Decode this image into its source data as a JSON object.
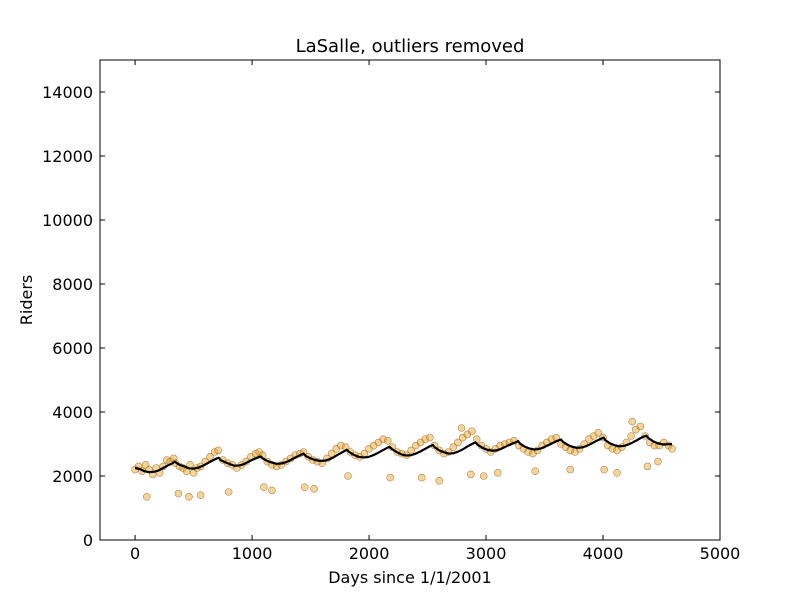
{
  "chart_data": {
    "type": "scatter",
    "title": "LaSalle, outliers removed",
    "xlabel": "Days since 1/1/2001",
    "ylabel": "Riders",
    "xlim": [
      -300,
      5000
    ],
    "ylim": [
      0,
      15000
    ],
    "xticks": [
      0,
      1000,
      2000,
      3000,
      4000,
      5000
    ],
    "yticks": [
      0,
      2000,
      4000,
      6000,
      8000,
      10000,
      12000,
      14000
    ],
    "grid": false,
    "legend": "none",
    "colors": {
      "points_fill": "#e8a020",
      "points_edge": "#7a4a00",
      "trend_line": "#000000",
      "axes": "#000000"
    },
    "series": [
      {
        "kind": "scatter",
        "values": [
          [
            0,
            2200
          ],
          [
            30,
            2300
          ],
          [
            60,
            2150
          ],
          [
            90,
            2350
          ],
          [
            120,
            2200
          ],
          [
            150,
            2050
          ],
          [
            180,
            2250
          ],
          [
            210,
            2100
          ],
          [
            240,
            2300
          ],
          [
            270,
            2500
          ],
          [
            300,
            2450
          ],
          [
            330,
            2550
          ],
          [
            345,
            2400
          ],
          [
            380,
            2300
          ],
          [
            410,
            2250
          ],
          [
            440,
            2150
          ],
          [
            470,
            2350
          ],
          [
            500,
            2100
          ],
          [
            530,
            2250
          ],
          [
            560,
            2300
          ],
          [
            600,
            2450
          ],
          [
            640,
            2600
          ],
          [
            680,
            2750
          ],
          [
            710,
            2800
          ],
          [
            750,
            2500
          ],
          [
            790,
            2400
          ],
          [
            830,
            2350
          ],
          [
            870,
            2250
          ],
          [
            910,
            2350
          ],
          [
            950,
            2450
          ],
          [
            990,
            2600
          ],
          [
            1030,
            2700
          ],
          [
            1060,
            2750
          ],
          [
            1090,
            2650
          ],
          [
            1130,
            2450
          ],
          [
            1170,
            2350
          ],
          [
            1210,
            2300
          ],
          [
            1250,
            2350
          ],
          [
            1290,
            2450
          ],
          [
            1330,
            2550
          ],
          [
            1370,
            2650
          ],
          [
            1410,
            2700
          ],
          [
            1440,
            2750
          ],
          [
            1480,
            2600
          ],
          [
            1520,
            2500
          ],
          [
            1560,
            2450
          ],
          [
            1600,
            2400
          ],
          [
            1640,
            2550
          ],
          [
            1680,
            2700
          ],
          [
            1720,
            2850
          ],
          [
            1760,
            2950
          ],
          [
            1800,
            2900
          ],
          [
            1840,
            2750
          ],
          [
            1880,
            2650
          ],
          [
            1920,
            2600
          ],
          [
            1960,
            2700
          ],
          [
            2000,
            2850
          ],
          [
            2040,
            2950
          ],
          [
            2080,
            3050
          ],
          [
            2120,
            3150
          ],
          [
            2160,
            3100
          ],
          [
            2200,
            2900
          ],
          [
            2240,
            2750
          ],
          [
            2280,
            2700
          ],
          [
            2320,
            2650
          ],
          [
            2360,
            2800
          ],
          [
            2400,
            2950
          ],
          [
            2440,
            3050
          ],
          [
            2480,
            3150
          ],
          [
            2520,
            3200
          ],
          [
            2560,
            2950
          ],
          [
            2600,
            2800
          ],
          [
            2640,
            2700
          ],
          [
            2680,
            2750
          ],
          [
            2720,
            2900
          ],
          [
            2760,
            3050
          ],
          [
            2800,
            3200
          ],
          [
            2840,
            3300
          ],
          [
            2880,
            3400
          ],
          [
            2920,
            3150
          ],
          [
            2960,
            2950
          ],
          [
            3000,
            2850
          ],
          [
            3040,
            2750
          ],
          [
            3080,
            2850
          ],
          [
            3120,
            2950
          ],
          [
            3160,
            3000
          ],
          [
            3200,
            3050
          ],
          [
            3240,
            3100
          ],
          [
            3280,
            2950
          ],
          [
            3320,
            2850
          ],
          [
            3360,
            2750
          ],
          [
            3400,
            2700
          ],
          [
            3440,
            2800
          ],
          [
            3480,
            2950
          ],
          [
            3520,
            3050
          ],
          [
            3560,
            3150
          ],
          [
            3600,
            3200
          ],
          [
            3640,
            3000
          ],
          [
            3680,
            2900
          ],
          [
            3720,
            2800
          ],
          [
            3760,
            2750
          ],
          [
            3800,
            2850
          ],
          [
            3840,
            3000
          ],
          [
            3880,
            3150
          ],
          [
            3920,
            3250
          ],
          [
            3960,
            3350
          ],
          [
            4000,
            3200
          ],
          [
            4040,
            2950
          ],
          [
            4080,
            2850
          ],
          [
            4120,
            2800
          ],
          [
            4160,
            2900
          ],
          [
            4200,
            3050
          ],
          [
            4240,
            3250
          ],
          [
            4280,
            3450
          ],
          [
            4320,
            3550
          ],
          [
            4360,
            3250
          ],
          [
            4400,
            3050
          ],
          [
            4440,
            2950
          ],
          [
            4480,
            2950
          ],
          [
            4520,
            3050
          ],
          [
            4560,
            2950
          ],
          [
            4590,
            2850
          ],
          [
            100,
            1350
          ],
          [
            370,
            1450
          ],
          [
            460,
            1350
          ],
          [
            560,
            1400
          ],
          [
            800,
            1500
          ],
          [
            1100,
            1650
          ],
          [
            1170,
            1550
          ],
          [
            1450,
            1650
          ],
          [
            1530,
            1600
          ],
          [
            1820,
            2000
          ],
          [
            2180,
            1950
          ],
          [
            2450,
            1950
          ],
          [
            2600,
            1850
          ],
          [
            2870,
            2050
          ],
          [
            2980,
            2000
          ],
          [
            3100,
            2100
          ],
          [
            3420,
            2150
          ],
          [
            3720,
            2200
          ],
          [
            4010,
            2200
          ],
          [
            4120,
            2100
          ],
          [
            4380,
            2300
          ],
          [
            4470,
            2450
          ],
          [
            2790,
            3500
          ],
          [
            4250,
            3700
          ]
        ]
      },
      {
        "kind": "line",
        "values": [
          [
            0,
            2250
          ],
          [
            40,
            2220
          ],
          [
            80,
            2150
          ],
          [
            120,
            2120
          ],
          [
            160,
            2130
          ],
          [
            200,
            2170
          ],
          [
            240,
            2250
          ],
          [
            280,
            2330
          ],
          [
            320,
            2400
          ],
          [
            340,
            2450
          ],
          [
            350,
            2420
          ],
          [
            380,
            2350
          ],
          [
            420,
            2300
          ],
          [
            460,
            2240
          ],
          [
            500,
            2230
          ],
          [
            540,
            2260
          ],
          [
            580,
            2320
          ],
          [
            620,
            2400
          ],
          [
            660,
            2480
          ],
          [
            700,
            2550
          ],
          [
            715,
            2570
          ],
          [
            730,
            2500
          ],
          [
            770,
            2430
          ],
          [
            810,
            2370
          ],
          [
            850,
            2320
          ],
          [
            890,
            2330
          ],
          [
            930,
            2370
          ],
          [
            970,
            2450
          ],
          [
            1010,
            2520
          ],
          [
            1050,
            2580
          ],
          [
            1075,
            2610
          ],
          [
            1090,
            2550
          ],
          [
            1130,
            2470
          ],
          [
            1170,
            2420
          ],
          [
            1210,
            2380
          ],
          [
            1250,
            2390
          ],
          [
            1290,
            2430
          ],
          [
            1330,
            2500
          ],
          [
            1370,
            2580
          ],
          [
            1410,
            2650
          ],
          [
            1440,
            2700
          ],
          [
            1460,
            2620
          ],
          [
            1500,
            2550
          ],
          [
            1540,
            2500
          ],
          [
            1580,
            2470
          ],
          [
            1620,
            2480
          ],
          [
            1660,
            2520
          ],
          [
            1700,
            2590
          ],
          [
            1740,
            2680
          ],
          [
            1780,
            2760
          ],
          [
            1810,
            2820
          ],
          [
            1830,
            2750
          ],
          [
            1870,
            2660
          ],
          [
            1910,
            2600
          ],
          [
            1950,
            2580
          ],
          [
            1990,
            2590
          ],
          [
            2030,
            2640
          ],
          [
            2070,
            2710
          ],
          [
            2110,
            2790
          ],
          [
            2150,
            2870
          ],
          [
            2175,
            2910
          ],
          [
            2200,
            2830
          ],
          [
            2240,
            2740
          ],
          [
            2280,
            2670
          ],
          [
            2320,
            2640
          ],
          [
            2360,
            2650
          ],
          [
            2400,
            2700
          ],
          [
            2440,
            2770
          ],
          [
            2480,
            2850
          ],
          [
            2520,
            2930
          ],
          [
            2545,
            2970
          ],
          [
            2560,
            2900
          ],
          [
            2600,
            2800
          ],
          [
            2640,
            2740
          ],
          [
            2680,
            2700
          ],
          [
            2720,
            2710
          ],
          [
            2760,
            2760
          ],
          [
            2800,
            2830
          ],
          [
            2840,
            2920
          ],
          [
            2880,
            3000
          ],
          [
            2910,
            3050
          ],
          [
            2930,
            2970
          ],
          [
            2970,
            2880
          ],
          [
            3010,
            2820
          ],
          [
            3050,
            2790
          ],
          [
            3090,
            2800
          ],
          [
            3130,
            2850
          ],
          [
            3170,
            2920
          ],
          [
            3210,
            2990
          ],
          [
            3250,
            3050
          ],
          [
            3275,
            3090
          ],
          [
            3290,
            3010
          ],
          [
            3330,
            2920
          ],
          [
            3370,
            2860
          ],
          [
            3410,
            2830
          ],
          [
            3450,
            2840
          ],
          [
            3490,
            2890
          ],
          [
            3530,
            2960
          ],
          [
            3570,
            3030
          ],
          [
            3610,
            3100
          ],
          [
            3640,
            3140
          ],
          [
            3660,
            3060
          ],
          [
            3700,
            2970
          ],
          [
            3740,
            2910
          ],
          [
            3780,
            2880
          ],
          [
            3820,
            2890
          ],
          [
            3860,
            2940
          ],
          [
            3900,
            3010
          ],
          [
            3940,
            3090
          ],
          [
            3980,
            3160
          ],
          [
            4005,
            3200
          ],
          [
            4020,
            3120
          ],
          [
            4060,
            3020
          ],
          [
            4100,
            2960
          ],
          [
            4140,
            2930
          ],
          [
            4180,
            2940
          ],
          [
            4220,
            2990
          ],
          [
            4260,
            3060
          ],
          [
            4300,
            3140
          ],
          [
            4340,
            3220
          ],
          [
            4370,
            3260
          ],
          [
            4390,
            3180
          ],
          [
            4430,
            3080
          ],
          [
            4470,
            3020
          ],
          [
            4510,
            2990
          ],
          [
            4550,
            2990
          ],
          [
            4590,
            3000
          ]
        ]
      }
    ]
  }
}
